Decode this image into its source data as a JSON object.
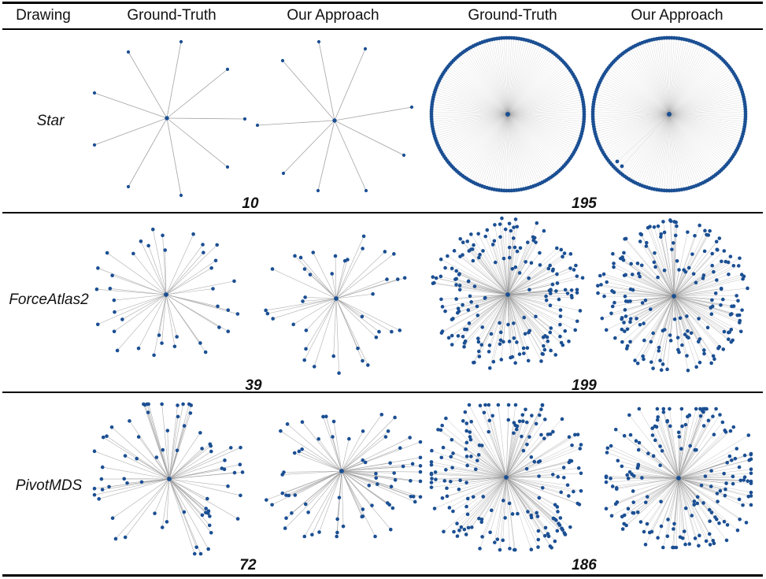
{
  "header": {
    "drawing": "Drawing",
    "col1": "Ground-Truth",
    "col2": "Our Approach",
    "col3": "Ground-Truth",
    "col4": "Our Approach"
  },
  "rows": [
    {
      "label": "Star",
      "count_left": "10",
      "count_right": "195"
    },
    {
      "label": "ForceAtlas2",
      "count_left": "39",
      "count_right": "199"
    },
    {
      "label": "PivotMDS",
      "count_left": "72",
      "count_right": "186"
    }
  ],
  "colors": {
    "node": "#1b4f93",
    "edge": "#9a9a9a",
    "rule": "#000000"
  }
}
